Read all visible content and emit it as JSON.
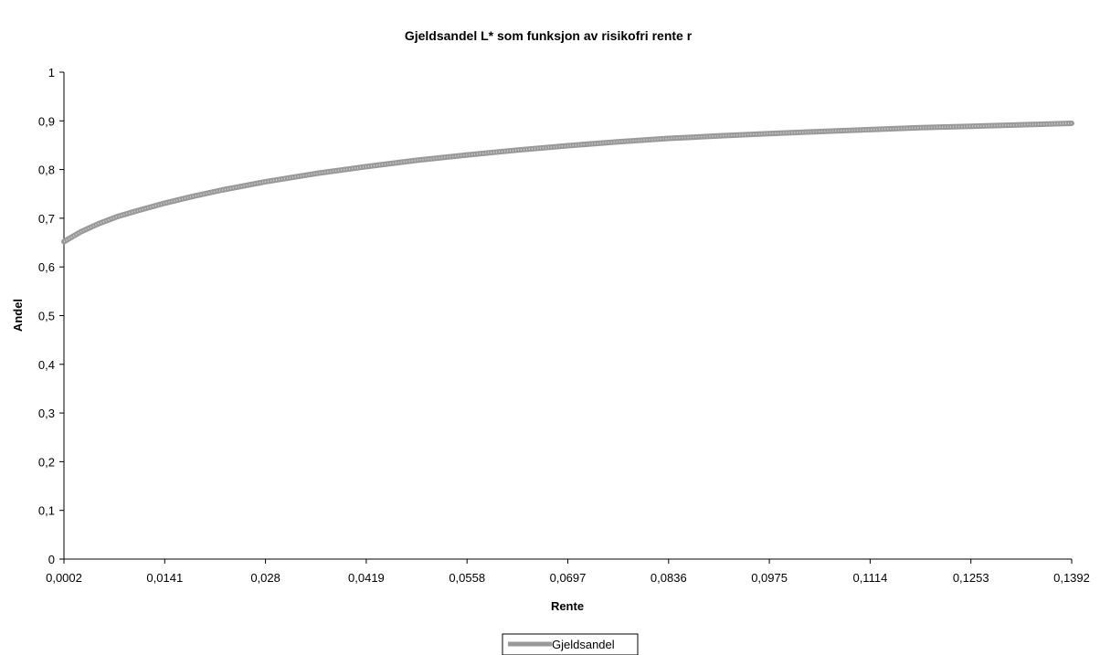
{
  "chart_data": {
    "type": "line",
    "title": "Gjeldsandel L* som funksjon av risikofri rente r",
    "xlabel": "Rente",
    "ylabel": "Andel",
    "x_tick_labels": [
      "0,0002",
      "0,0141",
      "0,028",
      "0,0419",
      "0,0558",
      "0,0697",
      "0,0836",
      "0,0975",
      "0,1114",
      "0,1253",
      "0,1392"
    ],
    "y_tick_labels": [
      "0",
      "0,1",
      "0,2",
      "0,3",
      "0,4",
      "0,5",
      "0,6",
      "0,7",
      "0,8",
      "0,9",
      "1"
    ],
    "xlim": [
      0.0002,
      0.1392
    ],
    "ylim": [
      0,
      1
    ],
    "grid": false,
    "legend_position": "bottom",
    "series": [
      {
        "name": "Gjeldsandel",
        "color": "#999999",
        "x": [
          0.0002,
          0.0025,
          0.005,
          0.0075,
          0.01,
          0.0141,
          0.018,
          0.022,
          0.028,
          0.035,
          0.0419,
          0.0488,
          0.0558,
          0.0627,
          0.0697,
          0.0766,
          0.0836,
          0.0905,
          0.0975,
          0.1044,
          0.1114,
          0.1183,
          0.1253,
          0.1322,
          0.1392
        ],
        "values": [
          0.652,
          0.672,
          0.689,
          0.703,
          0.714,
          0.731,
          0.745,
          0.758,
          0.775,
          0.792,
          0.806,
          0.819,
          0.83,
          0.84,
          0.849,
          0.857,
          0.864,
          0.869,
          0.874,
          0.878,
          0.882,
          0.886,
          0.889,
          0.892,
          0.895
        ]
      }
    ]
  }
}
